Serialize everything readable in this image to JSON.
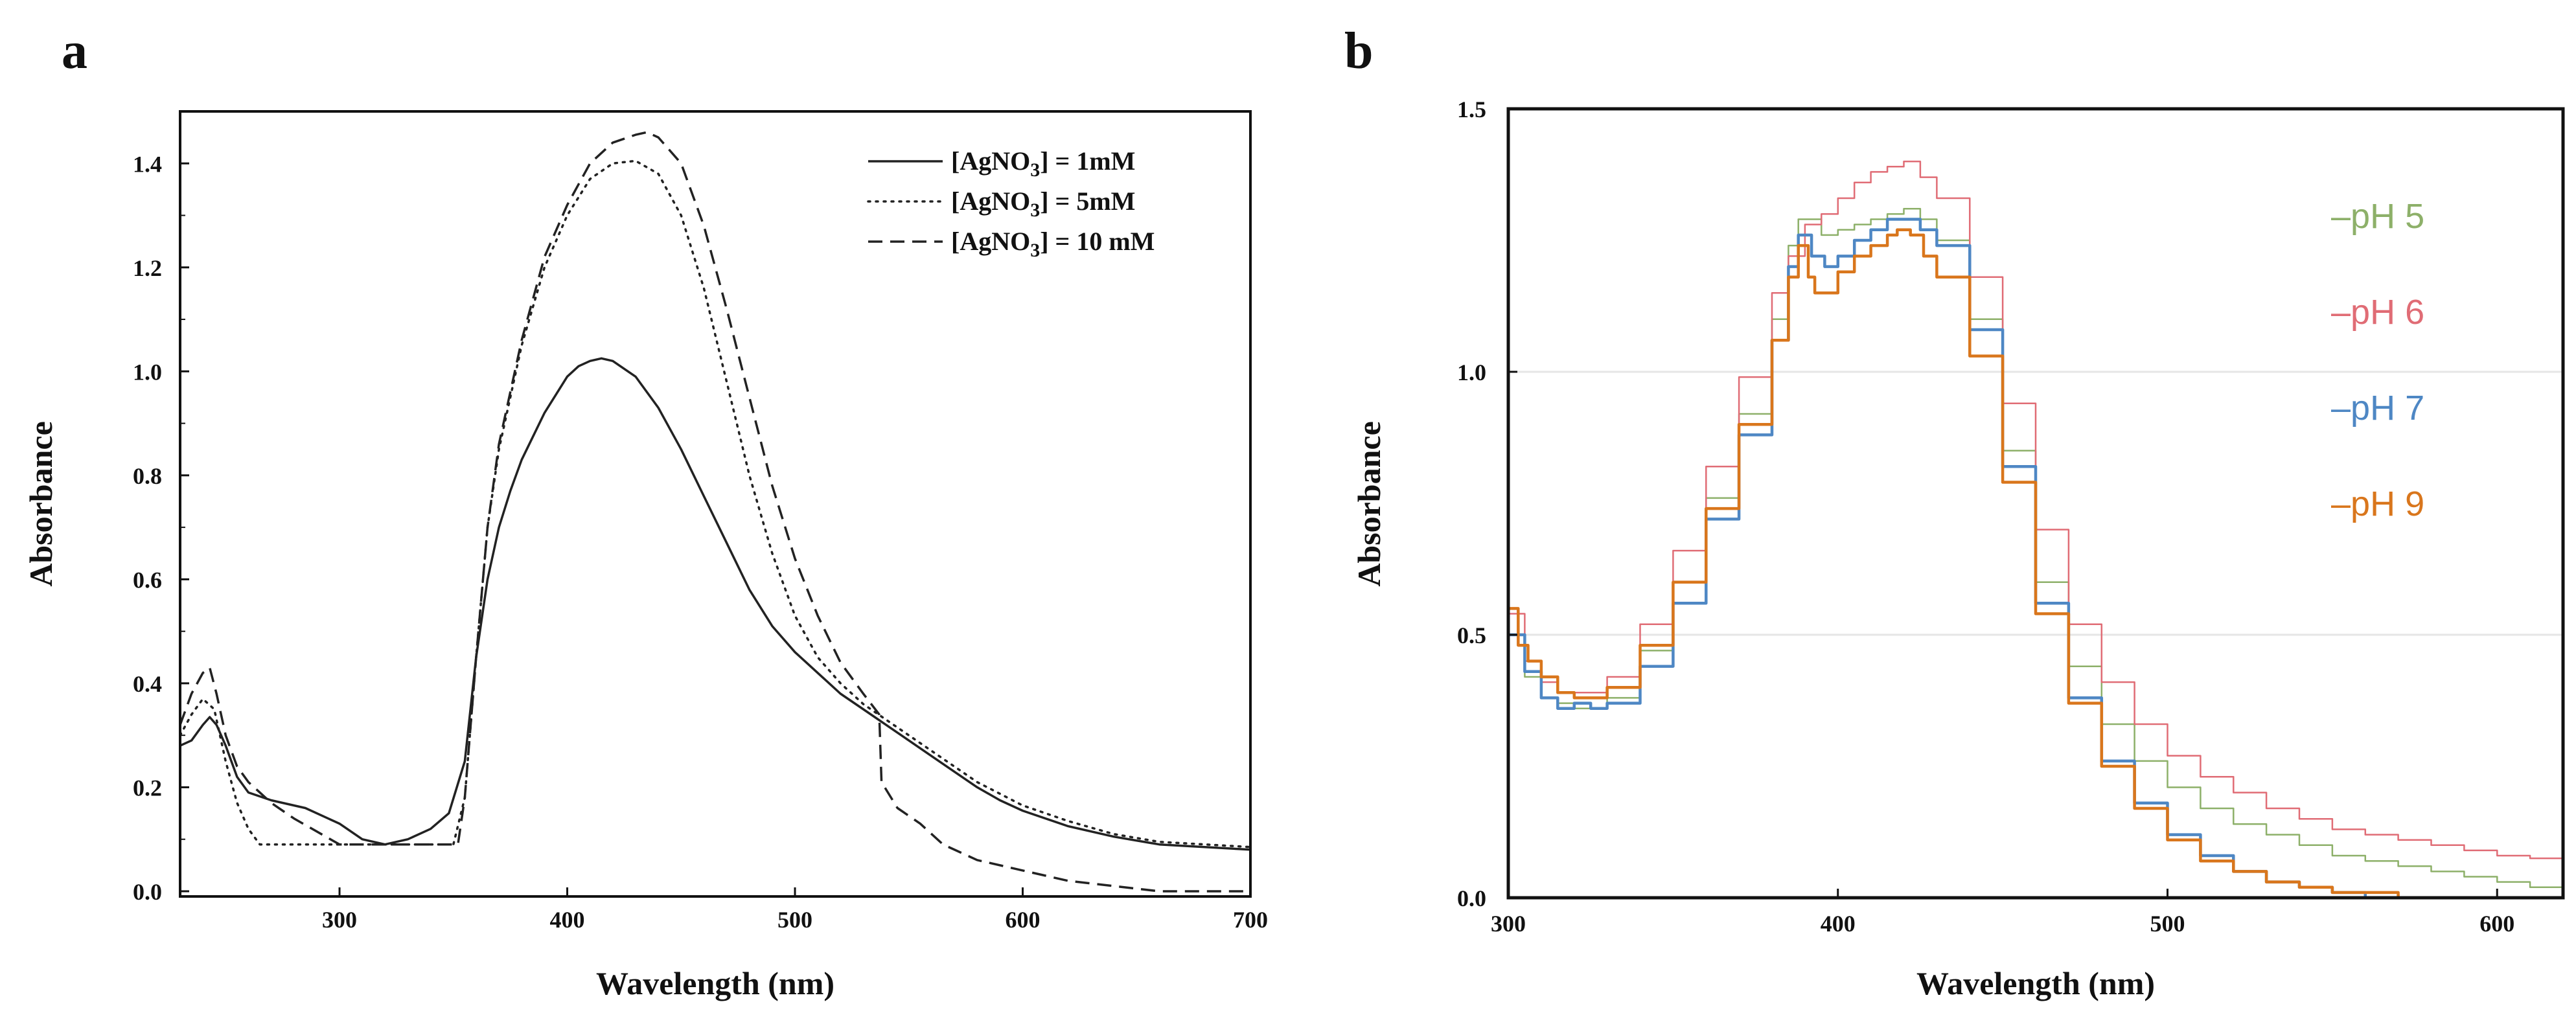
{
  "panels": {
    "a": {
      "label": "a"
    },
    "b": {
      "label": "b"
    }
  },
  "chart_data": [
    {
      "id": "a",
      "type": "line",
      "title": "",
      "xlabel": "Wavelength (nm)",
      "ylabel": "Absorbance",
      "xlim": [
        230,
        700
      ],
      "ylim": [
        -0.01,
        1.5
      ],
      "x_ticks": [
        300,
        400,
        500,
        600,
        700
      ],
      "x_tick_labels": [
        "300",
        "400",
        "500",
        "600",
        "700"
      ],
      "y_ticks": [
        0.0,
        0.2,
        0.4,
        0.6,
        0.8,
        1.0,
        1.2,
        1.4
      ],
      "y_tick_labels": [
        "0.0",
        "0.2",
        "0.4",
        "0.6",
        "0.8",
        "1.0",
        "1.2",
        "1.4"
      ],
      "legend_position": "top-right",
      "series": [
        {
          "name": "[AgNO3] = 1mM",
          "legend_prefix": "[AgNO",
          "legend_sub": "3",
          "legend_suffix": "] = 1mM",
          "style": "solid",
          "color": "#222222",
          "x": [
            230,
            235,
            240,
            243,
            246,
            250,
            255,
            260,
            270,
            285,
            300,
            310,
            320,
            330,
            340,
            348,
            355,
            360,
            365,
            370,
            375,
            380,
            390,
            400,
            405,
            410,
            415,
            420,
            430,
            440,
            450,
            460,
            470,
            480,
            490,
            500,
            510,
            520,
            530,
            540,
            550,
            560,
            570,
            580,
            590,
            600,
            620,
            640,
            660,
            680,
            700
          ],
          "y": [
            0.28,
            0.29,
            0.32,
            0.335,
            0.32,
            0.28,
            0.22,
            0.19,
            0.175,
            0.16,
            0.13,
            0.1,
            0.09,
            0.1,
            0.12,
            0.15,
            0.25,
            0.45,
            0.6,
            0.7,
            0.77,
            0.83,
            0.92,
            0.99,
            1.01,
            1.02,
            1.025,
            1.02,
            0.99,
            0.93,
            0.85,
            0.76,
            0.67,
            0.58,
            0.51,
            0.46,
            0.42,
            0.38,
            0.35,
            0.32,
            0.29,
            0.26,
            0.23,
            0.2,
            0.175,
            0.155,
            0.125,
            0.105,
            0.09,
            0.085,
            0.08
          ]
        },
        {
          "name": "[AgNO3] = 5mM",
          "legend_prefix": "[AgNO",
          "legend_sub": "3",
          "legend_suffix": "] = 5mM",
          "style": "dotted",
          "color": "#222222",
          "x": [
            230,
            235,
            240,
            245,
            250,
            255,
            260,
            265,
            270,
            280,
            300,
            320,
            340,
            350,
            355,
            360,
            365,
            370,
            380,
            390,
            400,
            410,
            420,
            430,
            440,
            450,
            460,
            470,
            480,
            490,
            500,
            510,
            520,
            530,
            540,
            550,
            560,
            580,
            600,
            620,
            640,
            660,
            680,
            700
          ],
          "y": [
            0.3,
            0.34,
            0.37,
            0.35,
            0.25,
            0.17,
            0.12,
            0.09,
            0.09,
            0.09,
            0.09,
            0.09,
            0.09,
            0.09,
            0.18,
            0.45,
            0.7,
            0.85,
            1.05,
            1.2,
            1.3,
            1.37,
            1.4,
            1.405,
            1.38,
            1.3,
            1.16,
            0.98,
            0.8,
            0.65,
            0.53,
            0.45,
            0.4,
            0.36,
            0.33,
            0.3,
            0.27,
            0.21,
            0.165,
            0.135,
            0.11,
            0.095,
            0.09,
            0.085
          ]
        },
        {
          "name": "[AgNO3] = 10 mM",
          "legend_prefix": "[AgNO",
          "legend_sub": "3",
          "legend_suffix": "] = 10 mM",
          "style": "dashed",
          "color": "#222222",
          "x": [
            230,
            235,
            240,
            243,
            246,
            250,
            255,
            260,
            270,
            280,
            300,
            320,
            340,
            352,
            355,
            360,
            365,
            370,
            380,
            390,
            400,
            410,
            420,
            430,
            435,
            440,
            450,
            460,
            470,
            480,
            490,
            500,
            510,
            520,
            530,
            537,
            538,
            545,
            555,
            565,
            580,
            600,
            620,
            640,
            660,
            680,
            700
          ],
          "y": [
            0.32,
            0.38,
            0.42,
            0.43,
            0.38,
            0.3,
            0.24,
            0.21,
            0.17,
            0.14,
            0.09,
            0.09,
            0.09,
            0.09,
            0.18,
            0.45,
            0.7,
            0.86,
            1.06,
            1.22,
            1.32,
            1.4,
            1.44,
            1.455,
            1.46,
            1.45,
            1.4,
            1.28,
            1.12,
            0.95,
            0.78,
            0.64,
            0.53,
            0.44,
            0.38,
            0.34,
            0.21,
            0.16,
            0.13,
            0.09,
            0.06,
            0.04,
            0.02,
            0.01,
            0.0,
            0.0,
            0.0
          ]
        }
      ]
    },
    {
      "id": "b",
      "type": "line",
      "title": "",
      "xlabel": "Wavelength (nm)",
      "ylabel": "Absorbance",
      "xlim": [
        300,
        620
      ],
      "ylim": [
        0,
        1.5
      ],
      "x_ticks": [
        300,
        400,
        500,
        600
      ],
      "x_tick_labels": [
        "300",
        "400",
        "500",
        "600"
      ],
      "y_ticks": [
        0.0,
        0.5,
        1.0,
        1.5
      ],
      "y_tick_labels": [
        "0.0",
        "0.5",
        "1.0",
        "1.5"
      ],
      "grid": true,
      "legend_position": "top-right",
      "series": [
        {
          "name": "pH 5",
          "legend_label": "–pH 5",
          "color": "#8DB069",
          "x": [
            300,
            305,
            310,
            315,
            320,
            330,
            340,
            350,
            360,
            370,
            380,
            385,
            388,
            395,
            400,
            405,
            410,
            415,
            420,
            425,
            430,
            440,
            450,
            460,
            470,
            480,
            490,
            500,
            510,
            520,
            530,
            540,
            550,
            560,
            570,
            580,
            590,
            600,
            610,
            620
          ],
          "y": [
            0.5,
            0.42,
            0.38,
            0.37,
            0.36,
            0.38,
            0.47,
            0.6,
            0.76,
            0.92,
            1.1,
            1.24,
            1.29,
            1.26,
            1.27,
            1.28,
            1.29,
            1.3,
            1.31,
            1.29,
            1.25,
            1.1,
            0.85,
            0.6,
            0.44,
            0.33,
            0.26,
            0.21,
            0.17,
            0.14,
            0.12,
            0.1,
            0.08,
            0.07,
            0.06,
            0.05,
            0.04,
            0.03,
            0.02,
            0.01
          ]
        },
        {
          "name": "pH 6",
          "legend_label": "–pH 6",
          "color": "#E06C75",
          "x": [
            300,
            305,
            310,
            315,
            320,
            330,
            340,
            350,
            360,
            370,
            380,
            385,
            390,
            395,
            400,
            405,
            410,
            415,
            420,
            425,
            430,
            440,
            450,
            460,
            470,
            480,
            490,
            500,
            510,
            520,
            530,
            540,
            550,
            560,
            570,
            580,
            590,
            600,
            610,
            620
          ],
          "y": [
            0.54,
            0.45,
            0.41,
            0.39,
            0.39,
            0.42,
            0.52,
            0.66,
            0.82,
            0.99,
            1.15,
            1.22,
            1.28,
            1.3,
            1.33,
            1.36,
            1.38,
            1.39,
            1.4,
            1.37,
            1.33,
            1.18,
            0.94,
            0.7,
            0.52,
            0.41,
            0.33,
            0.27,
            0.23,
            0.2,
            0.17,
            0.15,
            0.13,
            0.12,
            0.11,
            0.1,
            0.09,
            0.08,
            0.075,
            0.07
          ]
        },
        {
          "name": "pH 7",
          "legend_label": "–pH 7",
          "color": "#4E87C4",
          "x": [
            300,
            305,
            310,
            315,
            320,
            325,
            330,
            340,
            350,
            360,
            370,
            380,
            385,
            388,
            392,
            396,
            400,
            405,
            410,
            415,
            420,
            425,
            430,
            440,
            450,
            460,
            470,
            480,
            490,
            500,
            510,
            520,
            530,
            540,
            550,
            560,
            570
          ],
          "y": [
            0.5,
            0.43,
            0.38,
            0.36,
            0.37,
            0.36,
            0.37,
            0.44,
            0.56,
            0.72,
            0.88,
            1.06,
            1.2,
            1.26,
            1.22,
            1.2,
            1.22,
            1.25,
            1.27,
            1.29,
            1.29,
            1.27,
            1.24,
            1.08,
            0.82,
            0.56,
            0.38,
            0.26,
            0.18,
            0.12,
            0.08,
            0.05,
            0.03,
            0.02,
            0.01,
            0.0,
            0.0
          ]
        },
        {
          "name": "pH 9",
          "legend_label": "–pH 9",
          "color": "#D9761C",
          "x": [
            300,
            303,
            306,
            310,
            315,
            320,
            330,
            340,
            350,
            360,
            370,
            380,
            385,
            388,
            391,
            393,
            396,
            400,
            405,
            410,
            415,
            418,
            422,
            426,
            430,
            440,
            450,
            460,
            470,
            480,
            490,
            500,
            510,
            520,
            530,
            540,
            550,
            560,
            570,
            580
          ],
          "y": [
            0.55,
            0.48,
            0.45,
            0.42,
            0.39,
            0.38,
            0.4,
            0.48,
            0.6,
            0.74,
            0.9,
            1.06,
            1.18,
            1.24,
            1.18,
            1.15,
            1.15,
            1.19,
            1.22,
            1.24,
            1.26,
            1.27,
            1.26,
            1.22,
            1.18,
            1.03,
            0.79,
            0.54,
            0.37,
            0.25,
            0.17,
            0.11,
            0.07,
            0.05,
            0.03,
            0.02,
            0.01,
            0.01,
            0.0,
            0.0
          ]
        }
      ]
    }
  ]
}
